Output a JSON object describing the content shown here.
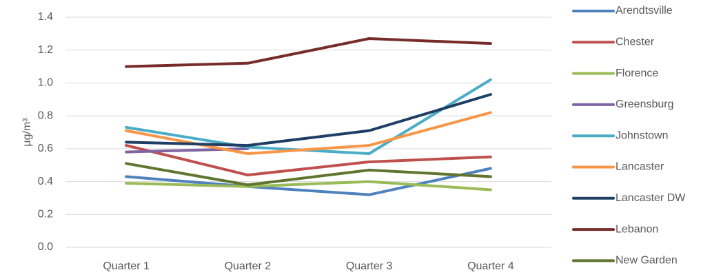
{
  "chart_data": {
    "type": "line",
    "y_label": "µg/m³",
    "categories": [
      "Quarter 1",
      "Quarter 2",
      "Quarter 3",
      "Quarter 4"
    ],
    "series": [
      {
        "name": "Arendtsville",
        "color": "#4f81bd",
        "values": [
          0.43,
          0.37,
          0.32,
          0.48
        ]
      },
      {
        "name": "Chester",
        "color": "#c0504d",
        "values": [
          0.62,
          0.44,
          0.52,
          0.55
        ]
      },
      {
        "name": "Florence",
        "color": "#9bbb59",
        "values": [
          0.39,
          0.37,
          0.4,
          0.35
        ]
      },
      {
        "name": "Greensburg",
        "color": "#8064a2",
        "values": [
          0.58,
          0.6,
          null,
          null
        ]
      },
      {
        "name": "Johnstown",
        "color": "#4bacc6",
        "values": [
          0.73,
          0.61,
          0.57,
          1.02
        ]
      },
      {
        "name": "Lancaster",
        "color": "#f79646",
        "values": [
          0.71,
          0.57,
          0.62,
          0.82
        ]
      },
      {
        "name": "Lancaster DW",
        "color": "#1f3e66",
        "values": [
          0.64,
          0.62,
          0.71,
          0.93
        ]
      },
      {
        "name": "Lebanon",
        "color": "#772c2a",
        "values": [
          1.1,
          1.12,
          1.27,
          1.24
        ]
      },
      {
        "name": "New Garden",
        "color": "#5f7530",
        "values": [
          0.51,
          0.38,
          0.47,
          0.43
        ]
      }
    ],
    "ylim": [
      0,
      1.4
    ],
    "yticks": [
      {
        "value": 0,
        "label": "0.0"
      },
      0.2,
      0.4,
      0.6,
      0.8,
      {
        "value": 1,
        "label": "1.0"
      },
      1.2,
      1.4
    ],
    "grid": true,
    "legend": "right"
  }
}
